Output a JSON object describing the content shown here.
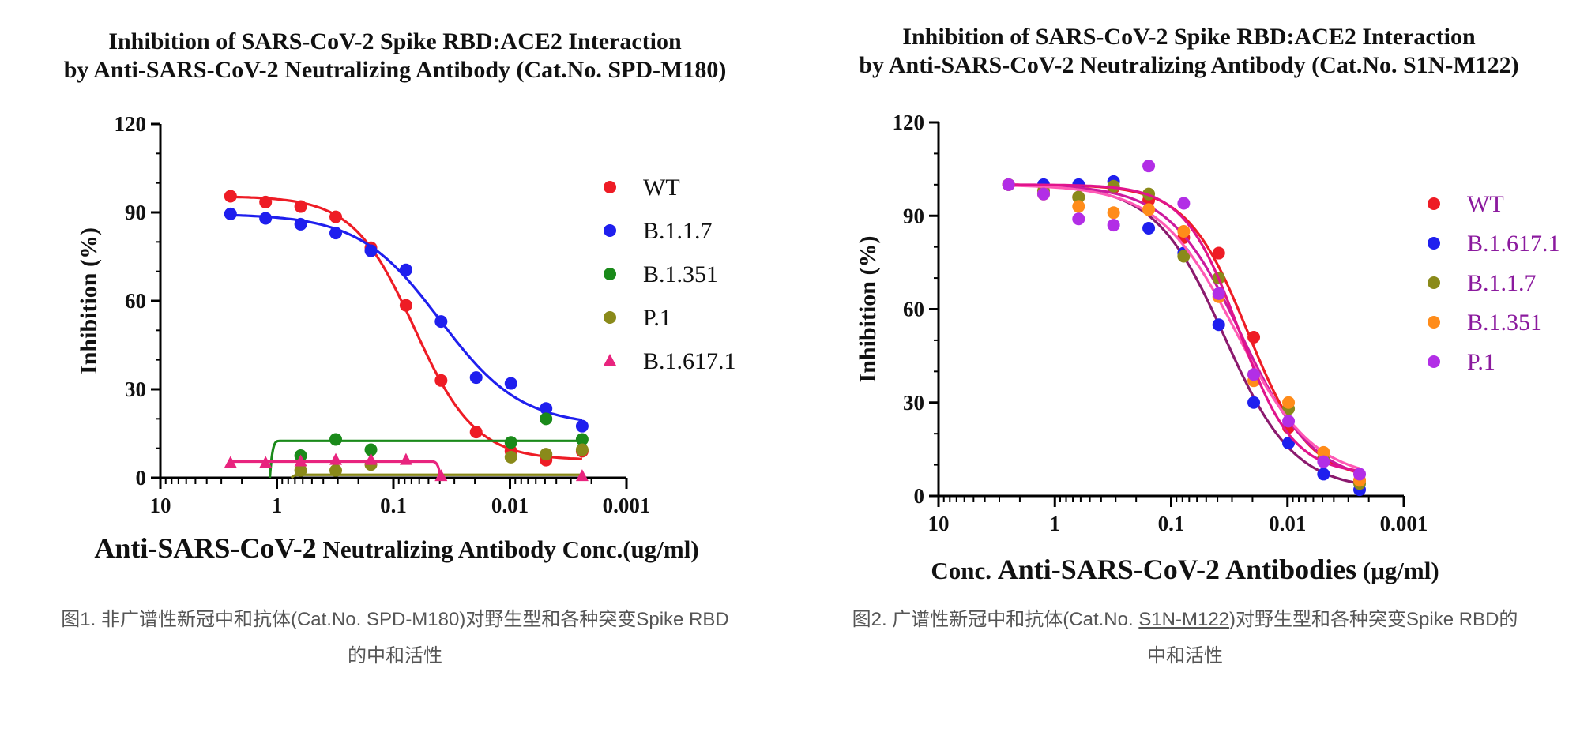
{
  "chart_data": [
    {
      "type": "scatter",
      "title": "Inhibition of SARS-CoV-2 Spike RBD:ACE2 Interaction",
      "subtitle": "by Anti-SARS-CoV-2 Neutralizing Antibody (Cat.No. SPD-M180)",
      "xlabel_prefix": "Anti-SARS-CoV-2",
      "xlabel_suffix": " Neutralizing Antibody Conc.(ug/ml)",
      "ylabel": "Inhibition (%)",
      "x_scale": "log",
      "x_reversed": true,
      "xlim": [
        10,
        0.001
      ],
      "ylim": [
        0,
        120
      ],
      "x_ticks": [
        10,
        1,
        0.1,
        0.01,
        0.001
      ],
      "x_tick_labels": [
        "10",
        "1",
        "0.1",
        "0.01",
        "0.001"
      ],
      "y_ticks": [
        0,
        30,
        60,
        90,
        120
      ],
      "y_tick_labels": [
        "0",
        "30",
        "60",
        "90",
        "120"
      ],
      "legend_position": "top-right",
      "x": [
        2.5,
        1.25,
        0.625,
        0.3125,
        0.156,
        0.078,
        0.039,
        0.0195,
        0.0098,
        0.0049,
        0.0024
      ],
      "series": [
        {
          "name": "WT",
          "color": "#ee1c25",
          "marker": "circle",
          "values": [
            95.5,
            93.5,
            92.0,
            88.5,
            78.0,
            58.5,
            33.0,
            15.5,
            9.0,
            6.0,
            9.0
          ],
          "fit": "sigmoid"
        },
        {
          "name": "B.1.1.7",
          "color": "#1f1fee",
          "marker": "circle",
          "values": [
            89.5,
            88.0,
            86.0,
            83.0,
            77.0,
            70.5,
            53.0,
            34.0,
            32.0,
            23.5,
            17.5
          ],
          "fit": "sigmoid"
        },
        {
          "name": "B.1.351",
          "color": "#1a8a1a",
          "marker": "circle",
          "values": [
            null,
            null,
            7.5,
            13.0,
            9.5,
            null,
            null,
            null,
            12.0,
            20.0,
            13.0
          ],
          "fit": "step"
        },
        {
          "name": "P.1",
          "color": "#8a8a1a",
          "marker": "circle",
          "values": [
            null,
            null,
            2.5,
            2.5,
            4.5,
            null,
            null,
            null,
            7.0,
            8.0,
            9.5
          ],
          "fit": "flat"
        },
        {
          "name": "B.1.617.1",
          "color": "#e8247e",
          "marker": "triangle",
          "values": [
            5.0,
            5.0,
            5.5,
            6.0,
            6.0,
            6.0,
            0.5,
            null,
            null,
            null,
            0.5
          ],
          "fit": "step-down"
        }
      ]
    },
    {
      "type": "scatter",
      "title": "Inhibition of SARS-CoV-2 Spike RBD:ACE2 Interaction",
      "subtitle": "by Anti-SARS-CoV-2 Neutralizing Antibody (Cat.No. S1N-M122)",
      "xlabel_prefix": "Conc. ",
      "xlabel_mid": "Anti-SARS-CoV-2 Antibodies",
      "xlabel_suffix": " (μg/ml)",
      "ylabel": "Inhibition (%)",
      "x_scale": "log",
      "x_reversed": true,
      "xlim": [
        10,
        0.001
      ],
      "ylim": [
        0,
        120
      ],
      "x_ticks": [
        10,
        1,
        0.1,
        0.01,
        0.001
      ],
      "x_tick_labels": [
        "10",
        "1",
        "0.1",
        "0.01",
        "0.001"
      ],
      "y_ticks": [
        0,
        30,
        60,
        90,
        120
      ],
      "y_tick_labels": [
        "0",
        "30",
        "60",
        "90",
        "120"
      ],
      "legend_position": "top-right",
      "legend_text_color": "#8b1a9e",
      "x": [
        2.5,
        1.25,
        0.625,
        0.3125,
        0.156,
        0.078,
        0.039,
        0.0195,
        0.0098,
        0.0049,
        0.0024
      ],
      "series": [
        {
          "name": "WT",
          "color": "#ee1c25",
          "marker": "circle",
          "values": [
            100.0,
            97.0,
            96.0,
            99.0,
            95.0,
            83.0,
            78.0,
            51.0,
            22.0,
            12.0,
            5.0
          ],
          "fit": "sigmoid"
        },
        {
          "name": "B.1.617.1",
          "color": "#1f1fee",
          "marker": "circle",
          "values": [
            100.0,
            100.0,
            100.0,
            101.0,
            86.0,
            78.0,
            55.0,
            30.0,
            17.0,
            7.0,
            2.0
          ],
          "fit": "sigmoid"
        },
        {
          "name": "B.1.1.7",
          "color": "#8a8a1a",
          "marker": "circle",
          "values": [
            100.0,
            98.0,
            96.0,
            99.5,
            97.0,
            77.0,
            70.0,
            39.0,
            28.0,
            12.0,
            4.0
          ],
          "fit": "sigmoid"
        },
        {
          "name": "B.1.351",
          "color": "#ff8c1a",
          "marker": "circle",
          "values": [
            100.0,
            97.0,
            93.0,
            91.0,
            92.0,
            85.0,
            64.0,
            37.0,
            30.0,
            14.0,
            5.0
          ],
          "fit": "sigmoid"
        },
        {
          "name": "P.1",
          "color": "#b22ee6",
          "marker": "circle",
          "values": [
            100.0,
            97.0,
            89.0,
            87.0,
            106.0,
            94.0,
            65.0,
            39.0,
            24.0,
            11.0,
            7.0
          ],
          "fit": "sigmoid"
        }
      ],
      "curve_colors": [
        "#ee1c25",
        "#8b1a6e",
        "#cc1a9e",
        "#ff5ab5",
        "#e0148c"
      ]
    }
  ],
  "captions": {
    "left_line1": "图1. 非广谱性新冠中和抗体(Cat.No. SPD-M180)对野生型和各种突变Spike RBD",
    "left_line2": "的中和活性",
    "right_line1_a": "图2. 广谱性新冠中和抗体(Cat.No. ",
    "right_line1_link": "S1N-M122",
    "right_line1_b": ")对野生型和各种突变Spike RBD的",
    "right_line2": "中和活性"
  }
}
